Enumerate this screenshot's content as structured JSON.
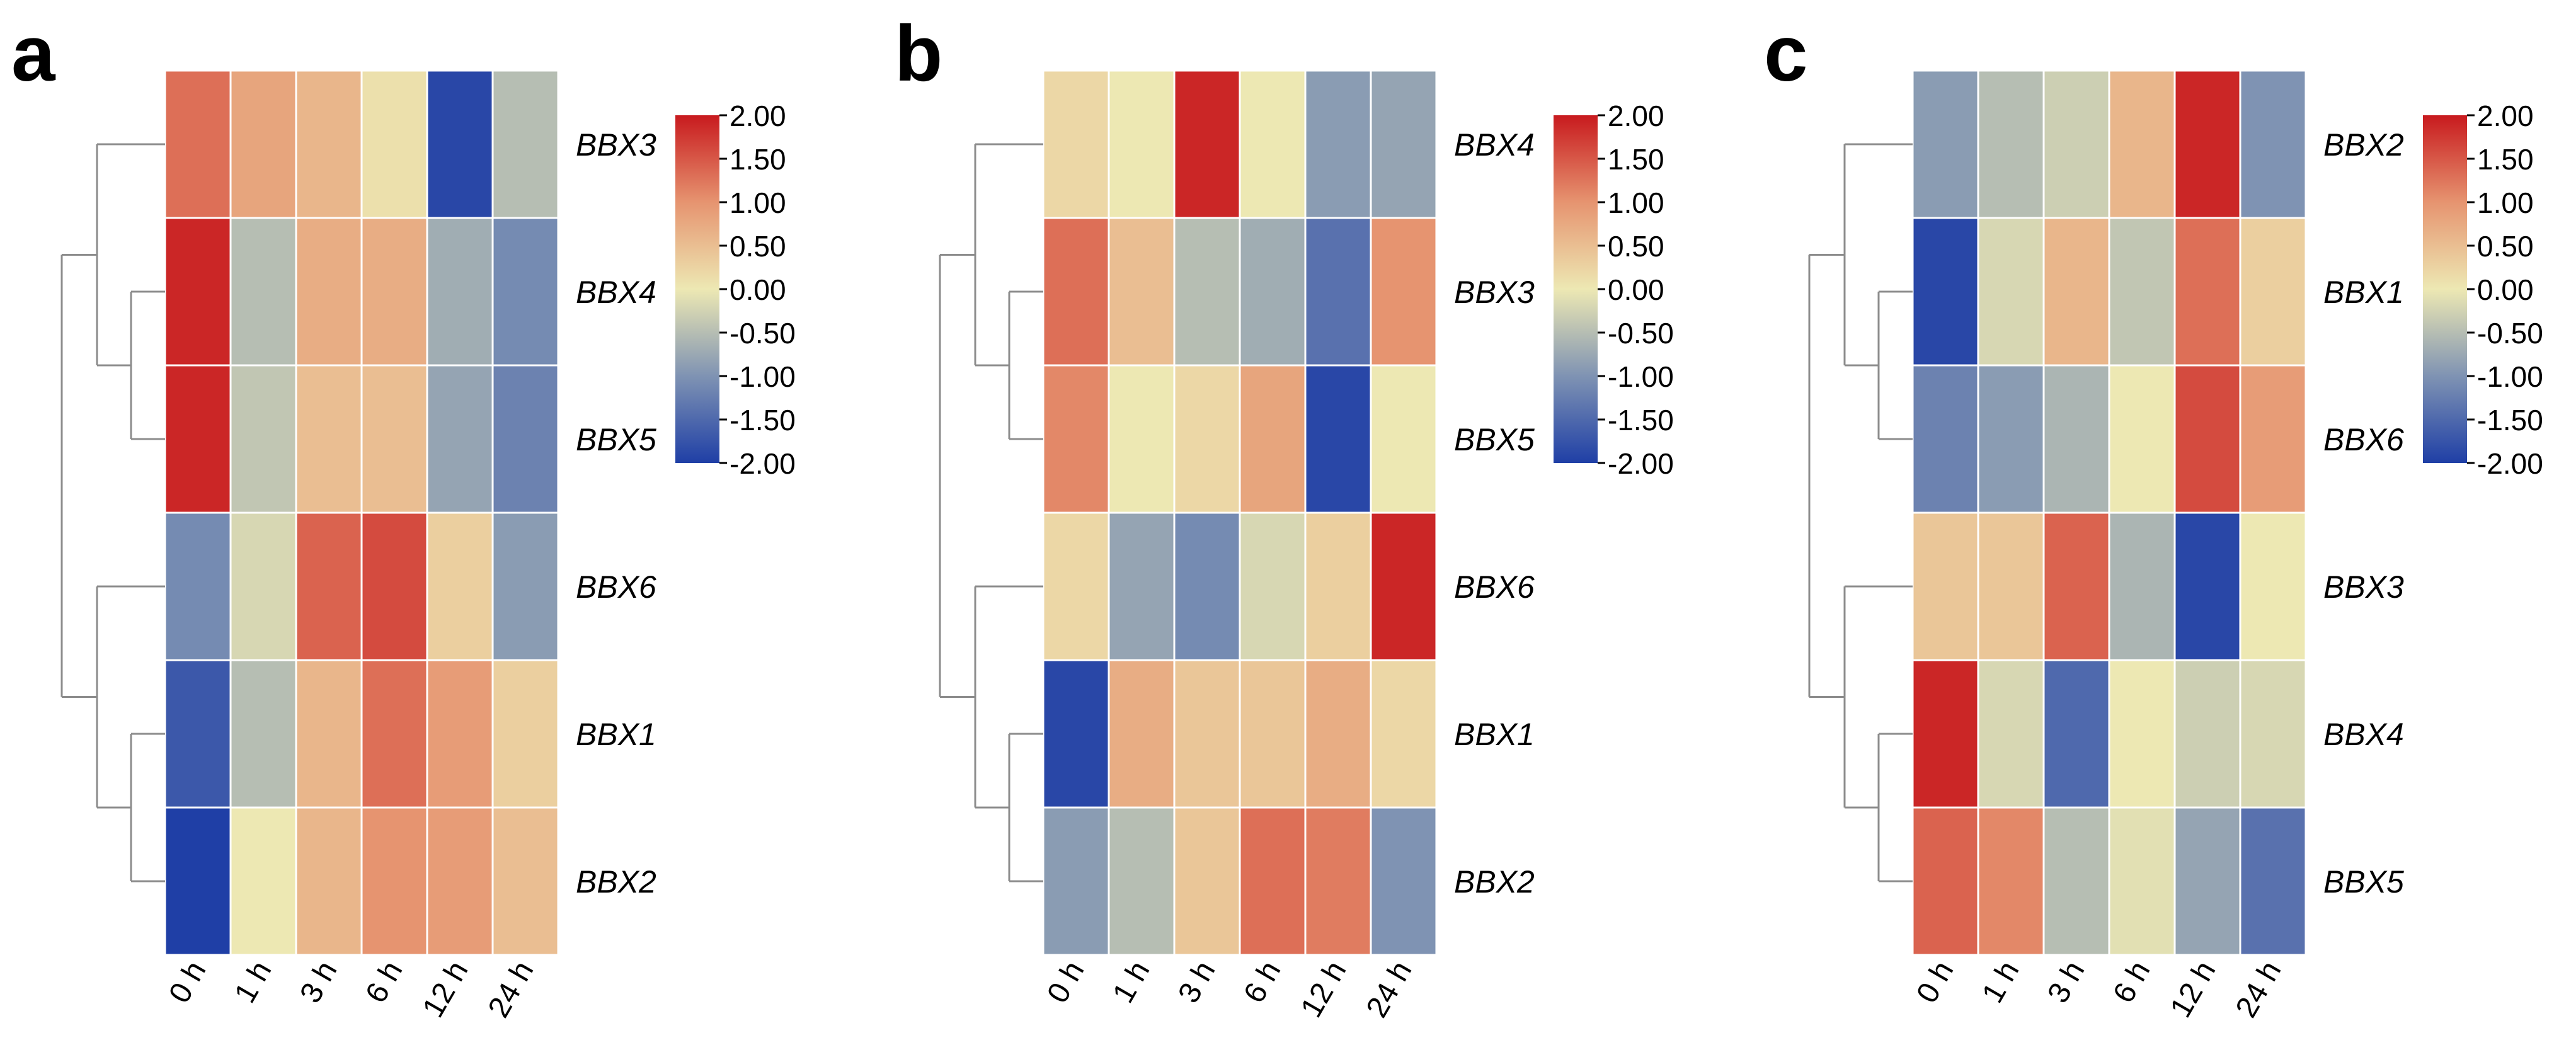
{
  "chart_data": [
    {
      "panel_label": "a",
      "type": "heatmap",
      "columns": [
        "0 h",
        "1 h",
        "3 h",
        "6 h",
        "12 h",
        "24 h"
      ],
      "rows": [
        "BBX3",
        "BBX4",
        "BBX5",
        "BBX6",
        "BBX1",
        "BBX2"
      ],
      "values": [
        [
          1.3,
          0.8,
          0.6,
          0.1,
          -1.9,
          -0.5
        ],
        [
          1.9,
          -0.5,
          0.7,
          0.7,
          -0.7,
          -1.1
        ],
        [
          1.9,
          -0.4,
          0.5,
          0.5,
          -0.8,
          -1.2
        ],
        [
          -1.1,
          -0.2,
          1.4,
          1.6,
          0.3,
          -0.9
        ],
        [
          -1.7,
          -0.5,
          0.6,
          1.3,
          0.9,
          0.3
        ],
        [
          -2.0,
          0.0,
          0.6,
          1.0,
          0.9,
          0.5
        ]
      ],
      "dendrogram": "((BBX3,(BBX4,BBX5)),(BBX6,(BBX1,BBX2)))",
      "colorbar": {
        "min": -2.0,
        "max": 2.0,
        "ticks": [
          "2.00",
          "1.50",
          "1.00",
          "0.50",
          "0.00",
          "-0.50",
          "-1.00",
          "-1.50",
          "-2.00"
        ]
      }
    },
    {
      "panel_label": "b",
      "type": "heatmap",
      "columns": [
        "0 h",
        "1 h",
        "3 h",
        "6 h",
        "12 h",
        "24 h"
      ],
      "rows": [
        "BBX4",
        "BBX3",
        "BBX5",
        "BBX6",
        "BBX1",
        "BBX2"
      ],
      "values": [
        [
          0.2,
          0.0,
          1.9,
          0.0,
          -0.9,
          -0.8
        ],
        [
          1.3,
          0.5,
          -0.5,
          -0.7,
          -1.4,
          1.0
        ],
        [
          1.1,
          0.0,
          0.2,
          0.8,
          -1.9,
          0.0
        ],
        [
          0.2,
          -0.8,
          -1.1,
          -0.2,
          0.3,
          1.9
        ],
        [
          -1.9,
          0.7,
          0.4,
          0.4,
          0.7,
          0.2
        ],
        [
          -0.9,
          -0.5,
          0.4,
          1.3,
          1.2,
          -1.0
        ]
      ],
      "dendrogram": "(((BBX4,(BBX3,BBX5)),(BBX6,(BBX1,BBX2))))",
      "colorbar": {
        "min": -2.0,
        "max": 2.0,
        "ticks": [
          "2.00",
          "1.50",
          "1.00",
          "0.50",
          "0.00",
          "-0.50",
          "-1.00",
          "-1.50",
          "-2.00"
        ]
      }
    },
    {
      "panel_label": "c",
      "type": "heatmap",
      "columns": [
        "0 h",
        "1 h",
        "3 h",
        "6 h",
        "12 h",
        "24 h"
      ],
      "rows": [
        "BBX2",
        "BBX1",
        "BBX6",
        "BBX3",
        "BBX4",
        "BBX5"
      ],
      "values": [
        [
          -0.9,
          -0.5,
          -0.3,
          0.6,
          1.9,
          -1.0
        ],
        [
          -1.9,
          -0.2,
          0.6,
          -0.4,
          1.3,
          0.3
        ],
        [
          -1.2,
          -0.9,
          -0.6,
          0.0,
          1.6,
          0.9
        ],
        [
          0.4,
          0.4,
          1.4,
          -0.6,
          -1.9,
          0.0
        ],
        [
          1.9,
          -0.2,
          -1.5,
          0.0,
          -0.3,
          -0.2
        ],
        [
          1.4,
          1.1,
          -0.5,
          -0.1,
          -0.8,
          -1.4
        ]
      ],
      "dendrogram": "((BBX2,(BBX1,BBX6)),(BBX3,(BBX4,BBX5)))",
      "colorbar": {
        "min": -2.0,
        "max": 2.0,
        "ticks": [
          "2.00",
          "1.50",
          "1.00",
          "0.50",
          "0.00",
          "-0.50",
          "-1.00",
          "-1.50",
          "-2.00"
        ]
      }
    }
  ]
}
